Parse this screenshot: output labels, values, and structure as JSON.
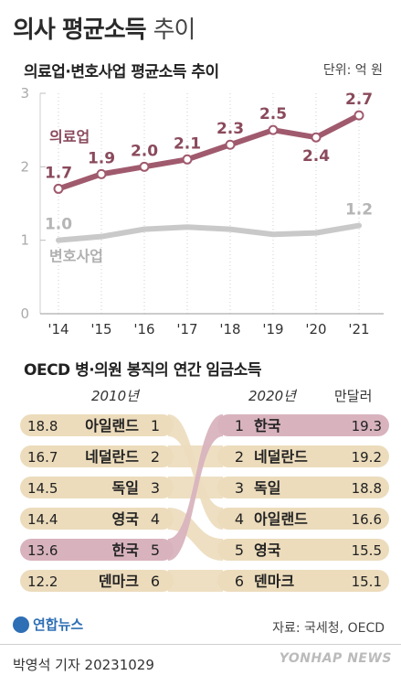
{
  "header": {
    "title_main": "의사 평균소득",
    "title_light": "추이"
  },
  "chart_data": [
    {
      "type": "line",
      "title": "의료업·변호사업 평균소득 추이",
      "unit_label": "단위: 억 원",
      "x": [
        "'14",
        "'15",
        "'16",
        "'17",
        "'18",
        "'19",
        "'20",
        "'21"
      ],
      "ylim": [
        0,
        3
      ],
      "yticks": [
        "0",
        "1",
        "2",
        "3"
      ],
      "grid": true,
      "series": [
        {
          "name": "의료업",
          "color": "#a05a6e",
          "values": [
            1.7,
            1.9,
            2.0,
            2.1,
            2.3,
            2.5,
            2.4,
            2.7
          ],
          "labels": [
            "1.7",
            "1.9",
            "2.0",
            "2.1",
            "2.3",
            "2.5",
            "2.4",
            "2.7"
          ]
        },
        {
          "name": "변호사업",
          "color": "#c9c9c9",
          "values": [
            1.0,
            1.05,
            1.15,
            1.18,
            1.15,
            1.08,
            1.1,
            1.2
          ],
          "labels": [
            "1.0",
            "",
            "",
            "",
            "",
            "",
            "",
            "1.2"
          ]
        }
      ]
    },
    {
      "type": "table",
      "title": "OECD 병·의원 봉직의 연간 임금소득",
      "left_header": "2010년",
      "right_header": "2020년",
      "unit_label": "만달러",
      "left": [
        {
          "value": "18.8",
          "country": "아일랜드",
          "rank": "1"
        },
        {
          "value": "16.7",
          "country": "네덜란드",
          "rank": "2"
        },
        {
          "value": "14.5",
          "country": "독일",
          "rank": "3"
        },
        {
          "value": "14.4",
          "country": "영국",
          "rank": "4"
        },
        {
          "value": "13.6",
          "country": "한국",
          "rank": "5"
        },
        {
          "value": "12.2",
          "country": "덴마크",
          "rank": "6"
        }
      ],
      "right": [
        {
          "rank": "1",
          "country": "한국",
          "value": "19.3"
        },
        {
          "rank": "2",
          "country": "네덜란드",
          "value": "19.2"
        },
        {
          "rank": "3",
          "country": "독일",
          "value": "18.8"
        },
        {
          "rank": "4",
          "country": "아일랜드",
          "value": "16.6"
        },
        {
          "rank": "5",
          "country": "영국",
          "value": "15.5"
        },
        {
          "rank": "6",
          "country": "덴마크",
          "value": "15.1"
        }
      ],
      "highlight_country": "한국",
      "highlight_color": "#d8b3be",
      "band_color": "#ecdcbc"
    }
  ],
  "footer": {
    "logo": "연합뉴스",
    "source": "자료: 국세청, OECD",
    "byline": "박영석 기자  20231029",
    "watermark": "YONHAP NEWS"
  }
}
